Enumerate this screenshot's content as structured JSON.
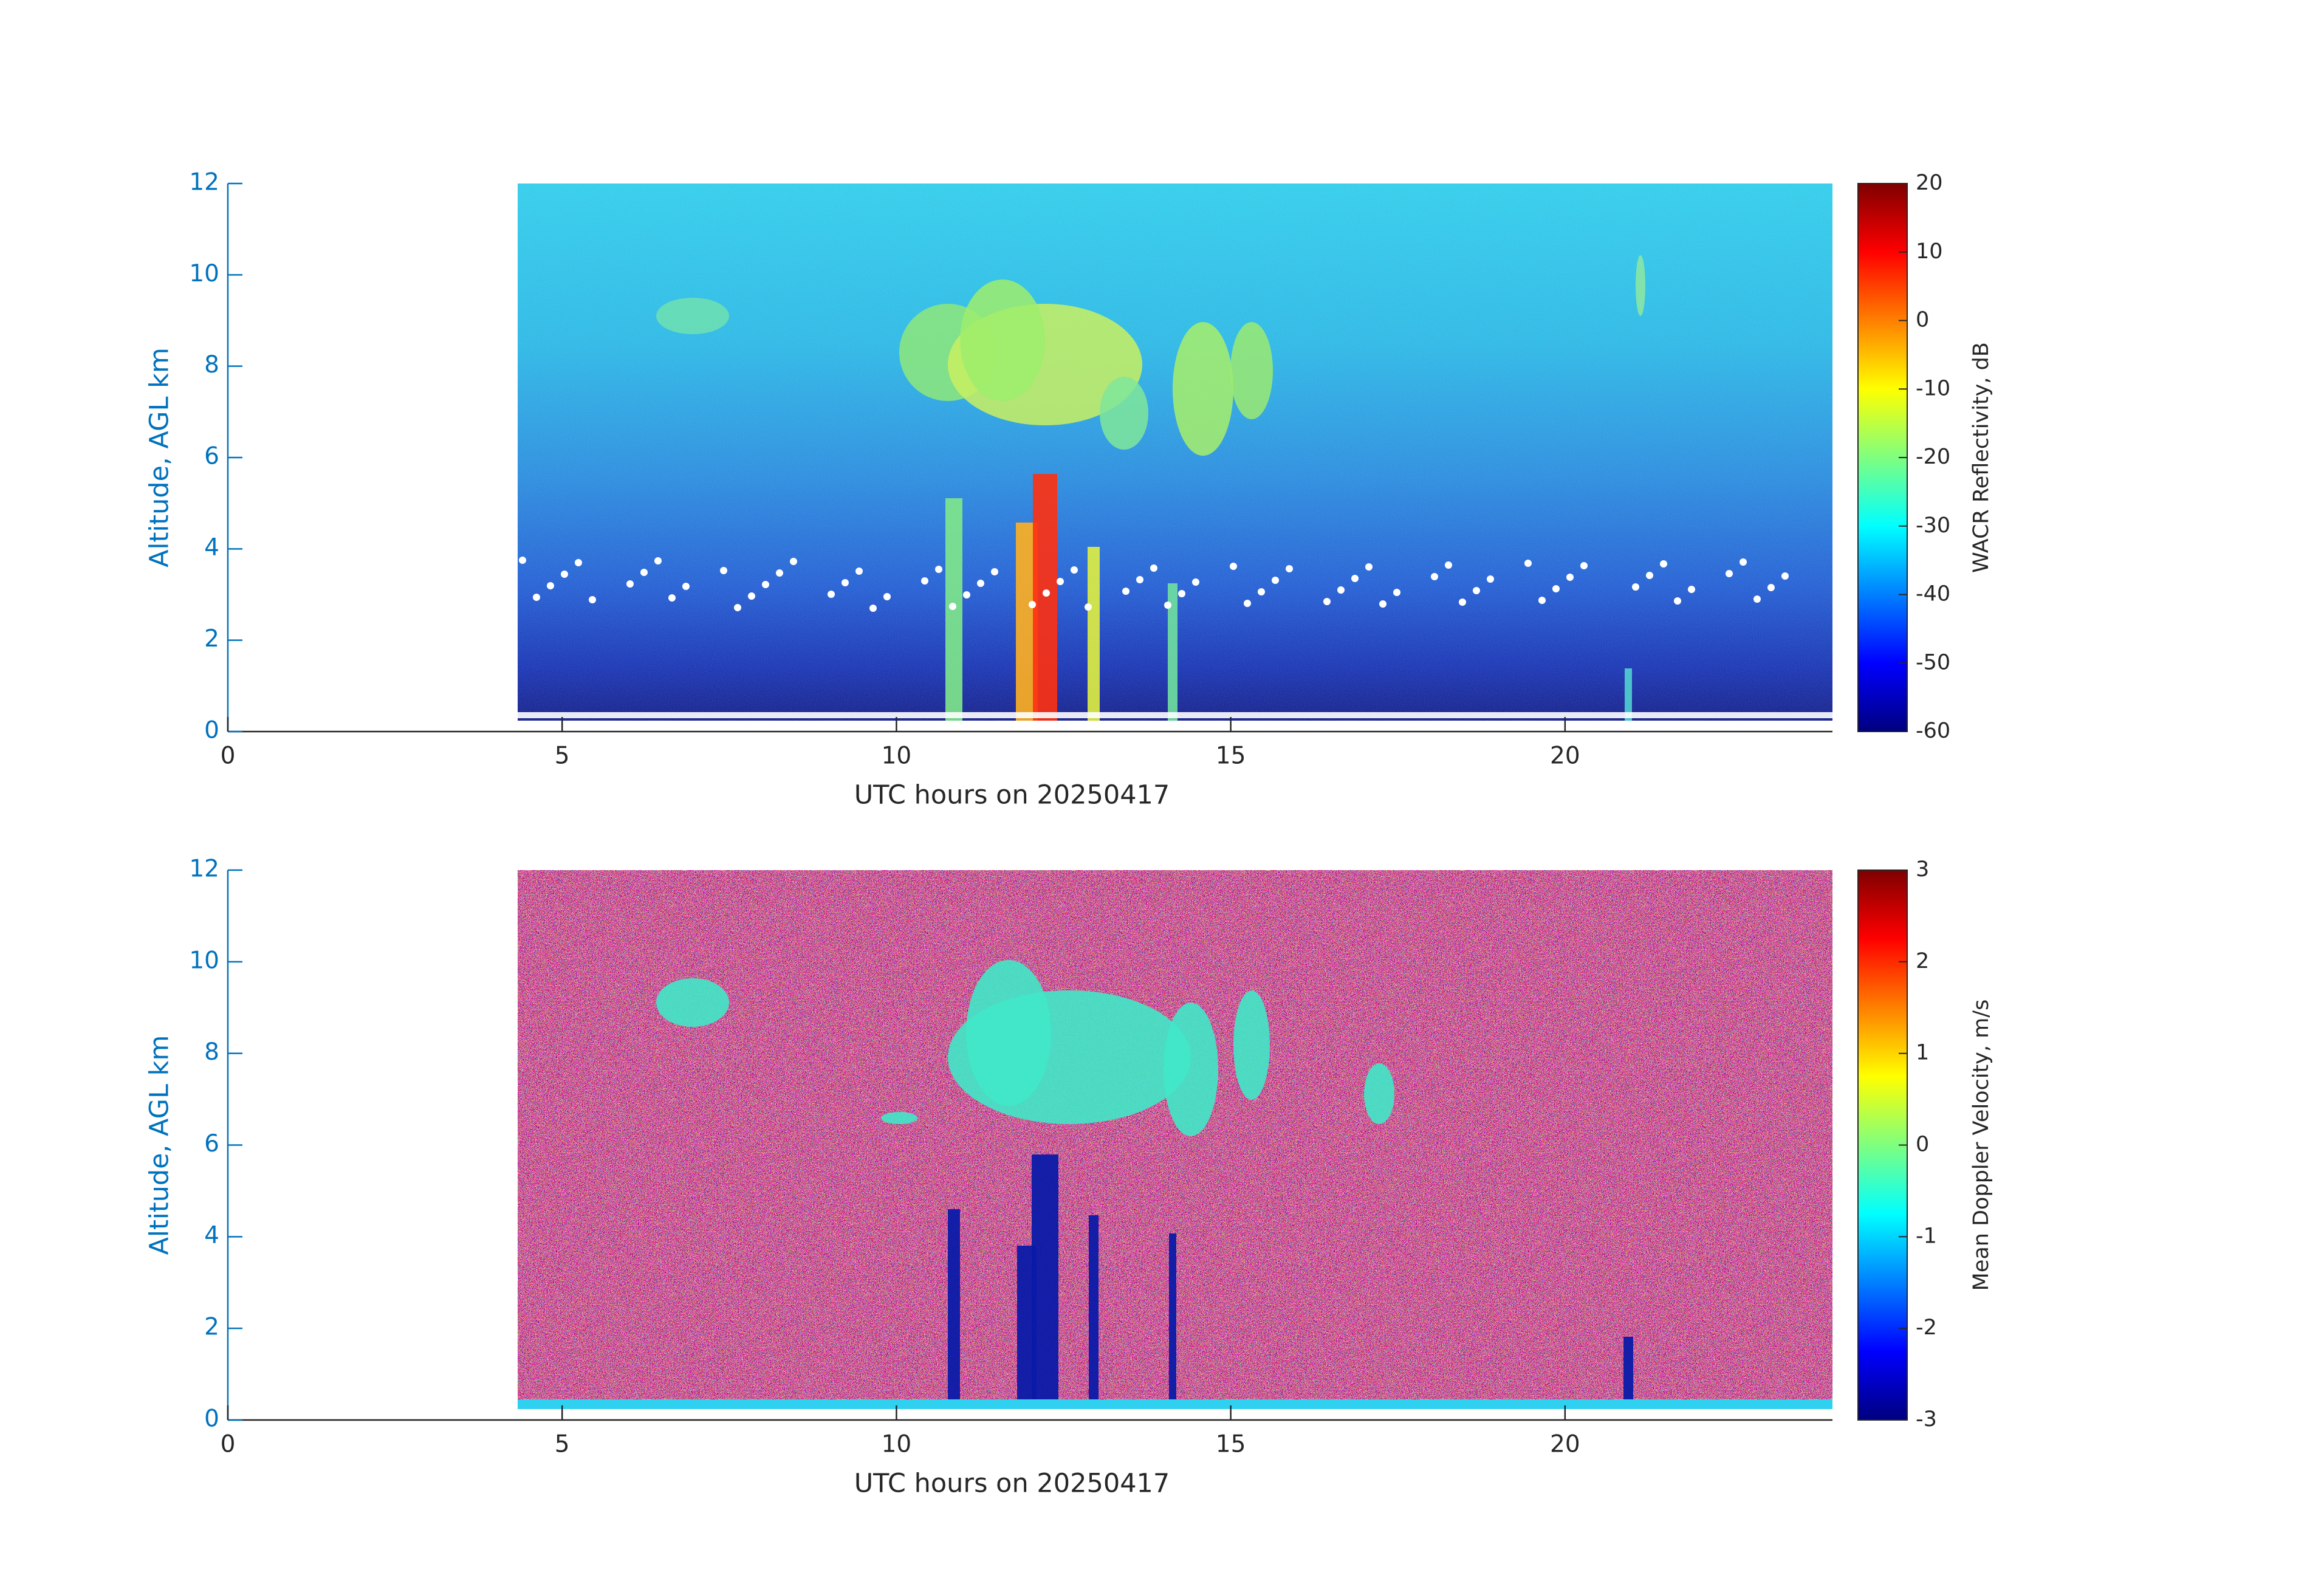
{
  "chart_data": [
    {
      "type": "heatmap",
      "xlabel": "UTC hours on 20250417",
      "ylabel": "Altitude, AGL km",
      "xlim": [
        0,
        24
      ],
      "xticks": [
        0,
        5,
        10,
        15,
        20
      ],
      "ylim": [
        0,
        12
      ],
      "yticks": [
        0,
        2,
        4,
        6,
        8,
        10,
        12
      ],
      "colorbar": {
        "label": "WACR Reflectivity, dB",
        "lim": [
          -60,
          20
        ],
        "ticks": [
          -60,
          -50,
          -40,
          -30,
          -20,
          -10,
          0,
          10,
          20
        ],
        "colormap": "jet"
      }
    },
    {
      "type": "heatmap",
      "xlabel": "UTC hours on 20250417",
      "ylabel": "Altitude, AGL km",
      "xlim": [
        0,
        24
      ],
      "xticks": [
        0,
        5,
        10,
        15,
        20
      ],
      "ylim": [
        0,
        12
      ],
      "yticks": [
        0,
        2,
        4,
        6,
        8,
        10,
        12
      ],
      "colorbar": {
        "label": "Mean Doppler Velocity, m/s",
        "lim": [
          -3,
          3
        ],
        "ticks": [
          -3,
          -2,
          -1,
          0,
          1,
          2,
          3
        ],
        "colormap": "jet"
      }
    }
  ]
}
